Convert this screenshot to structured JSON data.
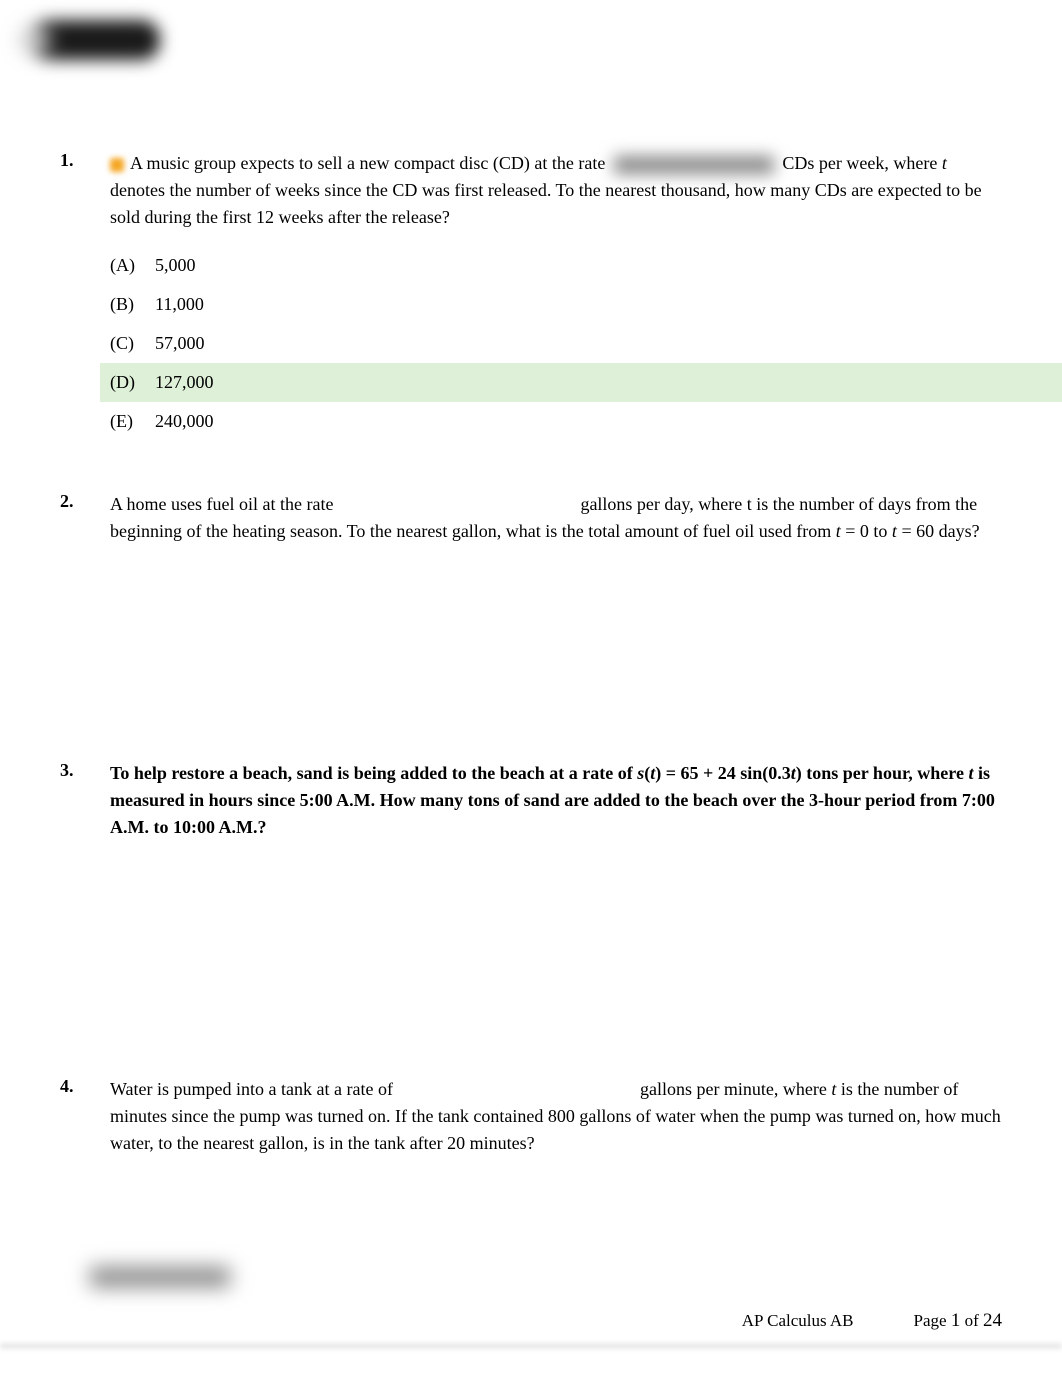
{
  "questions": [
    {
      "number": "1.",
      "text_parts": {
        "part1": "A music group expects to sell a new compact disc (CD) at the rate",
        "part2": "CDs per week, where ",
        "italic1": "t",
        "part3": " denotes the number of weeks since the CD was first released. To the nearest thousand, how many CDs are expected to be sold during the first 12 weeks after the release?"
      },
      "options": [
        {
          "label": "(A)",
          "value": "5,000",
          "highlighted": false
        },
        {
          "label": "(B)",
          "value": "11,000",
          "highlighted": false
        },
        {
          "label": "(C)",
          "value": "57,000",
          "highlighted": false
        },
        {
          "label": "(D)",
          "value": "127,000",
          "highlighted": true
        },
        {
          "label": "(E)",
          "value": "240,000",
          "highlighted": false
        }
      ]
    },
    {
      "number": "2.",
      "text_parts": {
        "part1": "A home uses fuel oil at the rate",
        "part2": "gallons per day, where t is the number of days from the beginning of the heating season. To the nearest gallon, what is the total amount of fuel oil used from ",
        "italic1": "t",
        "part3": " = 0 to ",
        "italic2": "t",
        "part4": " = 60 days?"
      }
    },
    {
      "number": "3.",
      "text_parts": {
        "part1": "To help restore a beach, sand is being added to the beach at a rate of ",
        "italic1": "s",
        "part2": "(",
        "italic2": "t",
        "part3": ") = 65 + 24 sin(0.3",
        "italic3": "t",
        "part4": ") tons per hour, where ",
        "italic4": "t",
        "part5": " is measured in hours since 5:00 A.M. How many tons of sand are added to the beach over the 3-hour period from 7:00 A.M. to 10:00 A.M.?"
      }
    },
    {
      "number": "4.",
      "text_parts": {
        "part1": "Water is pumped into a tank at a rate of",
        "part2": "gallons per minute, where ",
        "italic1": "t",
        "part3": " is the number of minutes since the pump was turned on. If the tank contained 800 gallons of water when the pump was turned on, how much water, to the nearest gallon, is in the tank after 20 minutes?"
      }
    }
  ],
  "footer": {
    "course": "AP Calculus AB",
    "page_label": "Page ",
    "page_current": "1",
    "page_of": " of ",
    "page_total": "24"
  },
  "colors": {
    "highlight_bg": "#dff0d8",
    "text": "#000000",
    "background": "#ffffff"
  }
}
